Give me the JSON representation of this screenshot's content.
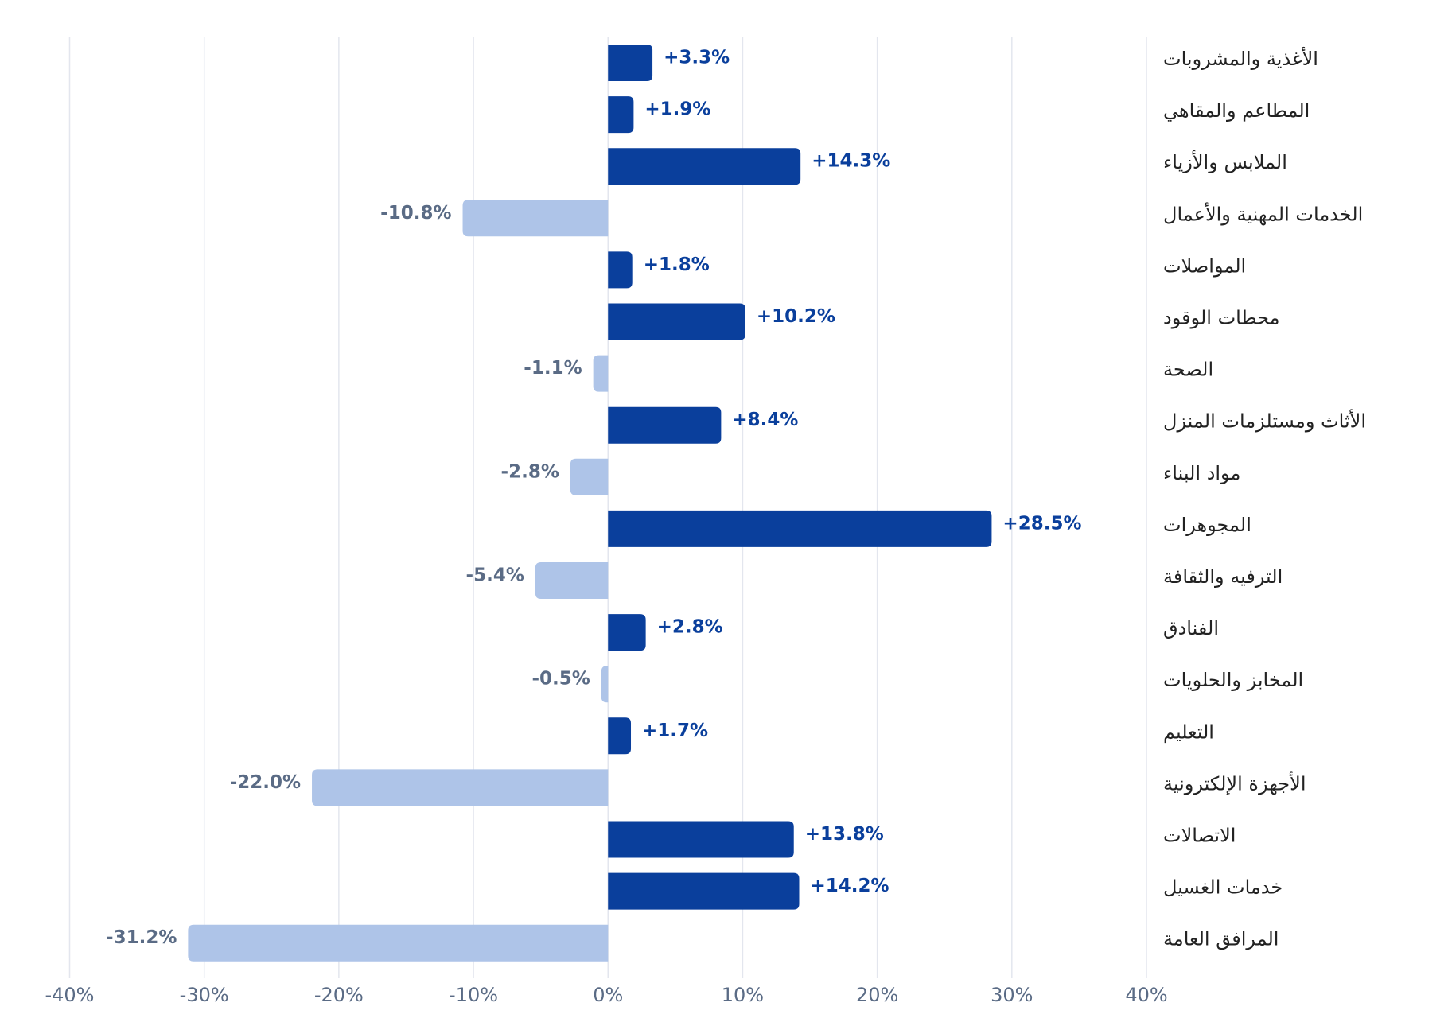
{
  "chart_data": {
    "type": "bar",
    "orientation": "horizontal",
    "categories": [
      "الأغذية والمشروبات",
      "المطاعم والمقاهي",
      "الملابس والأزياء",
      "الخدمات المهنية والأعمال",
      "المواصلات",
      "محطات الوقود",
      "الصحة",
      "الأثاث ومستلزمات المنزل",
      "مواد البناء",
      "المجوهرات",
      "الترفيه والثقافة",
      "الفنادق",
      "المخابز والحلويات",
      "التعليم",
      "الأجهزة الإلكترونية",
      "الاتصالات",
      "خدمات الغسيل",
      "المرافق العامة"
    ],
    "values": [
      3.3,
      1.9,
      14.3,
      -10.8,
      1.8,
      10.2,
      -1.1,
      8.4,
      -2.8,
      28.5,
      -5.4,
      2.8,
      -0.5,
      1.7,
      -22.0,
      13.8,
      14.2,
      -31.2
    ],
    "value_labels": [
      "+3.3%",
      "+1.9%",
      "+14.3%",
      "-10.8%",
      "+1.8%",
      "+10.2%",
      "-1.1%",
      "+8.4%",
      "-2.8%",
      "+28.5%",
      "-5.4%",
      "+2.8%",
      "-0.5%",
      "+1.7%",
      "-22.0%",
      "+13.8%",
      "+14.2%",
      "-31.2%"
    ],
    "positive_color": "#0a3f9c",
    "negative_color": "#aec4e8",
    "positive_label_color": "#0a3f9c",
    "negative_label_color": "#5a6b85",
    "xlim": [
      -40,
      40
    ],
    "xticks": [
      {
        "value": -40,
        "label": "-40%"
      },
      {
        "value": -30,
        "label": "-30%"
      },
      {
        "value": -20,
        "label": "-20%"
      },
      {
        "value": -10,
        "label": "-10%"
      },
      {
        "value": 0,
        "label": "0%"
      },
      {
        "value": 10,
        "label": "10%"
      },
      {
        "value": 20,
        "label": "20%"
      },
      {
        "value": 30,
        "label": "30%"
      },
      {
        "value": 40,
        "label": "40%"
      }
    ],
    "grid": true
  }
}
